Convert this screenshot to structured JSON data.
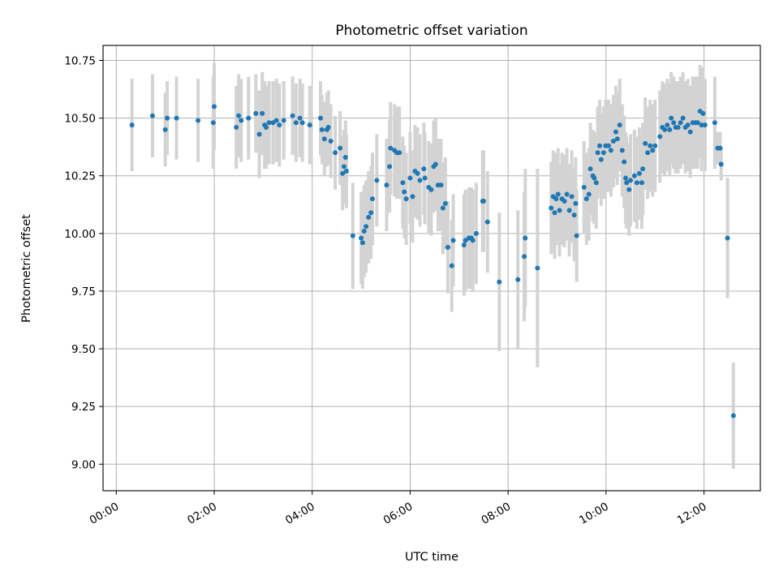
{
  "chart_data": {
    "type": "scatter",
    "title": "Photometric offset variation",
    "xlabel": "UTC time",
    "ylabel": "Photometric offset",
    "xlim": [
      -0.27,
      13.15
    ],
    "ylim": [
      8.885,
      10.815
    ],
    "grid": true,
    "x_ticks": [
      {
        "value": 0,
        "label": "00:00"
      },
      {
        "value": 2,
        "label": "02:00"
      },
      {
        "value": 4,
        "label": "04:00"
      },
      {
        "value": 6,
        "label": "06:00"
      },
      {
        "value": 8,
        "label": "08:00"
      },
      {
        "value": 10,
        "label": "10:00"
      },
      {
        "value": 12,
        "label": "12:00"
      }
    ],
    "y_ticks": [
      {
        "value": 9.0,
        "label": "9.00"
      },
      {
        "value": 9.25,
        "label": "9.25"
      },
      {
        "value": 9.5,
        "label": "9.50"
      },
      {
        "value": 9.75,
        "label": "9.75"
      },
      {
        "value": 10.0,
        "label": "10.00"
      },
      {
        "value": 10.25,
        "label": "10.25"
      },
      {
        "value": 10.5,
        "label": "10.50"
      },
      {
        "value": 10.75,
        "label": "10.75"
      }
    ],
    "series": [
      {
        "name": "offset",
        "marker_color": "#1f77b4",
        "errorbar_color": "#d3d3d3",
        "points": [
          [
            0.32,
            10.47,
            0.2
          ],
          [
            0.74,
            10.51,
            0.18
          ],
          [
            1.0,
            10.45,
            0.16
          ],
          [
            1.04,
            10.5,
            0.16
          ],
          [
            1.23,
            10.5,
            0.18
          ],
          [
            1.67,
            10.49,
            0.18
          ],
          [
            1.98,
            10.48,
            0.2
          ],
          [
            2.0,
            10.55,
            0.19
          ],
          [
            2.45,
            10.46,
            0.18
          ],
          [
            2.5,
            10.51,
            0.18
          ],
          [
            2.55,
            10.49,
            0.18
          ],
          [
            2.7,
            10.5,
            0.18
          ],
          [
            2.85,
            10.52,
            0.17
          ],
          [
            2.92,
            10.43,
            0.19
          ],
          [
            2.98,
            10.52,
            0.18
          ],
          [
            3.03,
            10.47,
            0.19
          ],
          [
            3.06,
            10.46,
            0.18
          ],
          [
            3.12,
            10.48,
            0.18
          ],
          [
            3.2,
            10.48,
            0.18
          ],
          [
            3.27,
            10.49,
            0.18
          ],
          [
            3.33,
            10.47,
            0.18
          ],
          [
            3.42,
            10.49,
            0.17
          ],
          [
            3.6,
            10.51,
            0.17
          ],
          [
            3.67,
            10.48,
            0.17
          ],
          [
            3.75,
            10.5,
            0.17
          ],
          [
            3.8,
            10.48,
            0.17
          ],
          [
            3.95,
            10.47,
            0.17
          ],
          [
            4.17,
            10.5,
            0.16
          ],
          [
            4.2,
            10.45,
            0.15
          ],
          [
            4.25,
            10.41,
            0.16
          ],
          [
            4.3,
            10.45,
            0.16
          ],
          [
            4.33,
            10.46,
            0.16
          ],
          [
            4.38,
            10.4,
            0.16
          ],
          [
            4.47,
            10.35,
            0.16
          ],
          [
            4.57,
            10.37,
            0.16
          ],
          [
            4.62,
            10.26,
            0.16
          ],
          [
            4.65,
            10.29,
            0.16
          ],
          [
            4.68,
            10.33,
            0.16
          ],
          [
            4.7,
            10.27,
            0.16
          ],
          [
            4.83,
            9.99,
            0.23
          ],
          [
            5.0,
            9.98,
            0.2
          ],
          [
            5.03,
            9.96,
            0.2
          ],
          [
            5.06,
            10.01,
            0.2
          ],
          [
            5.1,
            10.03,
            0.2
          ],
          [
            5.15,
            10.07,
            0.2
          ],
          [
            5.2,
            10.09,
            0.2
          ],
          [
            5.23,
            10.15,
            0.2
          ],
          [
            5.32,
            10.23,
            0.2
          ],
          [
            5.52,
            10.21,
            0.2
          ],
          [
            5.58,
            10.29,
            0.2
          ],
          [
            5.6,
            10.37,
            0.2
          ],
          [
            5.68,
            10.36,
            0.2
          ],
          [
            5.73,
            10.35,
            0.2
          ],
          [
            5.78,
            10.35,
            0.2
          ],
          [
            5.85,
            10.22,
            0.2
          ],
          [
            5.88,
            10.18,
            0.2
          ],
          [
            5.92,
            10.15,
            0.2
          ],
          [
            6.0,
            10.24,
            0.2
          ],
          [
            6.05,
            10.16,
            0.2
          ],
          [
            6.1,
            10.27,
            0.2
          ],
          [
            6.15,
            10.26,
            0.2
          ],
          [
            6.2,
            10.23,
            0.2
          ],
          [
            6.28,
            10.28,
            0.2
          ],
          [
            6.3,
            10.24,
            0.2
          ],
          [
            6.38,
            10.2,
            0.2
          ],
          [
            6.43,
            10.19,
            0.2
          ],
          [
            6.48,
            10.29,
            0.2
          ],
          [
            6.52,
            10.3,
            0.2
          ],
          [
            6.57,
            10.21,
            0.2
          ],
          [
            6.63,
            10.21,
            0.2
          ],
          [
            6.67,
            10.11,
            0.2
          ],
          [
            6.72,
            10.13,
            0.2
          ],
          [
            6.77,
            9.94,
            0.2
          ],
          [
            6.85,
            9.86,
            0.2
          ],
          [
            6.88,
            9.97,
            0.2
          ],
          [
            7.1,
            9.95,
            0.22
          ],
          [
            7.13,
            9.97,
            0.22
          ],
          [
            7.2,
            9.98,
            0.22
          ],
          [
            7.25,
            9.98,
            0.22
          ],
          [
            7.28,
            9.97,
            0.22
          ],
          [
            7.35,
            10.0,
            0.22
          ],
          [
            7.48,
            10.14,
            0.22
          ],
          [
            7.5,
            10.14,
            0.22
          ],
          [
            7.58,
            10.05,
            0.22
          ],
          [
            7.82,
            9.79,
            0.3
          ],
          [
            8.2,
            9.8,
            0.3
          ],
          [
            8.33,
            9.9,
            0.28
          ],
          [
            8.35,
            9.98,
            0.3
          ],
          [
            8.6,
            9.85,
            0.43
          ],
          [
            8.88,
            10.11,
            0.2
          ],
          [
            8.92,
            10.16,
            0.2
          ],
          [
            8.95,
            10.09,
            0.2
          ],
          [
            8.98,
            10.15,
            0.2
          ],
          [
            9.02,
            10.17,
            0.2
          ],
          [
            9.05,
            10.1,
            0.2
          ],
          [
            9.1,
            10.15,
            0.2
          ],
          [
            9.15,
            10.14,
            0.2
          ],
          [
            9.2,
            10.17,
            0.2
          ],
          [
            9.25,
            10.1,
            0.2
          ],
          [
            9.3,
            10.16,
            0.2
          ],
          [
            9.35,
            10.08,
            0.2
          ],
          [
            9.38,
            10.13,
            0.2
          ],
          [
            9.4,
            9.99,
            0.2
          ],
          [
            9.55,
            10.2,
            0.2
          ],
          [
            9.6,
            10.15,
            0.2
          ],
          [
            9.65,
            10.17,
            0.2
          ],
          [
            9.68,
            10.28,
            0.2
          ],
          [
            9.73,
            10.25,
            0.2
          ],
          [
            9.76,
            10.24,
            0.2
          ],
          [
            9.8,
            10.22,
            0.2
          ],
          [
            9.83,
            10.35,
            0.2
          ],
          [
            9.87,
            10.38,
            0.2
          ],
          [
            9.9,
            10.32,
            0.2
          ],
          [
            9.95,
            10.35,
            0.2
          ],
          [
            9.99,
            10.38,
            0.2
          ],
          [
            10.05,
            10.38,
            0.2
          ],
          [
            10.1,
            10.36,
            0.2
          ],
          [
            10.15,
            10.4,
            0.2
          ],
          [
            10.2,
            10.44,
            0.2
          ],
          [
            10.23,
            10.41,
            0.2
          ],
          [
            10.28,
            10.47,
            0.2
          ],
          [
            10.33,
            10.36,
            0.2
          ],
          [
            10.37,
            10.31,
            0.2
          ],
          [
            10.4,
            10.24,
            0.2
          ],
          [
            10.42,
            10.22,
            0.2
          ],
          [
            10.47,
            10.19,
            0.2
          ],
          [
            10.5,
            10.23,
            0.2
          ],
          [
            10.58,
            10.25,
            0.2
          ],
          [
            10.63,
            10.22,
            0.2
          ],
          [
            10.68,
            10.26,
            0.2
          ],
          [
            10.73,
            10.22,
            0.2
          ],
          [
            10.75,
            10.28,
            0.2
          ],
          [
            10.8,
            10.39,
            0.2
          ],
          [
            10.85,
            10.35,
            0.2
          ],
          [
            10.9,
            10.38,
            0.2
          ],
          [
            10.95,
            10.36,
            0.2
          ],
          [
            11.0,
            10.38,
            0.2
          ],
          [
            11.1,
            10.42,
            0.2
          ],
          [
            11.15,
            10.46,
            0.2
          ],
          [
            11.2,
            10.45,
            0.2
          ],
          [
            11.25,
            10.47,
            0.2
          ],
          [
            11.3,
            10.45,
            0.2
          ],
          [
            11.33,
            10.5,
            0.2
          ],
          [
            11.38,
            10.48,
            0.2
          ],
          [
            11.42,
            10.46,
            0.2
          ],
          [
            11.47,
            10.46,
            0.2
          ],
          [
            11.52,
            10.48,
            0.2
          ],
          [
            11.57,
            10.5,
            0.2
          ],
          [
            11.62,
            10.46,
            0.2
          ],
          [
            11.67,
            10.47,
            0.2
          ],
          [
            11.72,
            10.44,
            0.2
          ],
          [
            11.77,
            10.48,
            0.2
          ],
          [
            11.82,
            10.48,
            0.2
          ],
          [
            11.87,
            10.48,
            0.2
          ],
          [
            11.92,
            10.53,
            0.2
          ],
          [
            11.95,
            10.47,
            0.2
          ],
          [
            11.98,
            10.52,
            0.2
          ],
          [
            12.02,
            10.47,
            0.2
          ],
          [
            12.22,
            10.48,
            0.2
          ],
          [
            12.28,
            10.37,
            0.07
          ],
          [
            12.33,
            10.37,
            0.07
          ],
          [
            12.35,
            10.3,
            0.07
          ],
          [
            12.48,
            9.98,
            0.26
          ],
          [
            12.6,
            9.21,
            0.23
          ]
        ]
      }
    ]
  }
}
